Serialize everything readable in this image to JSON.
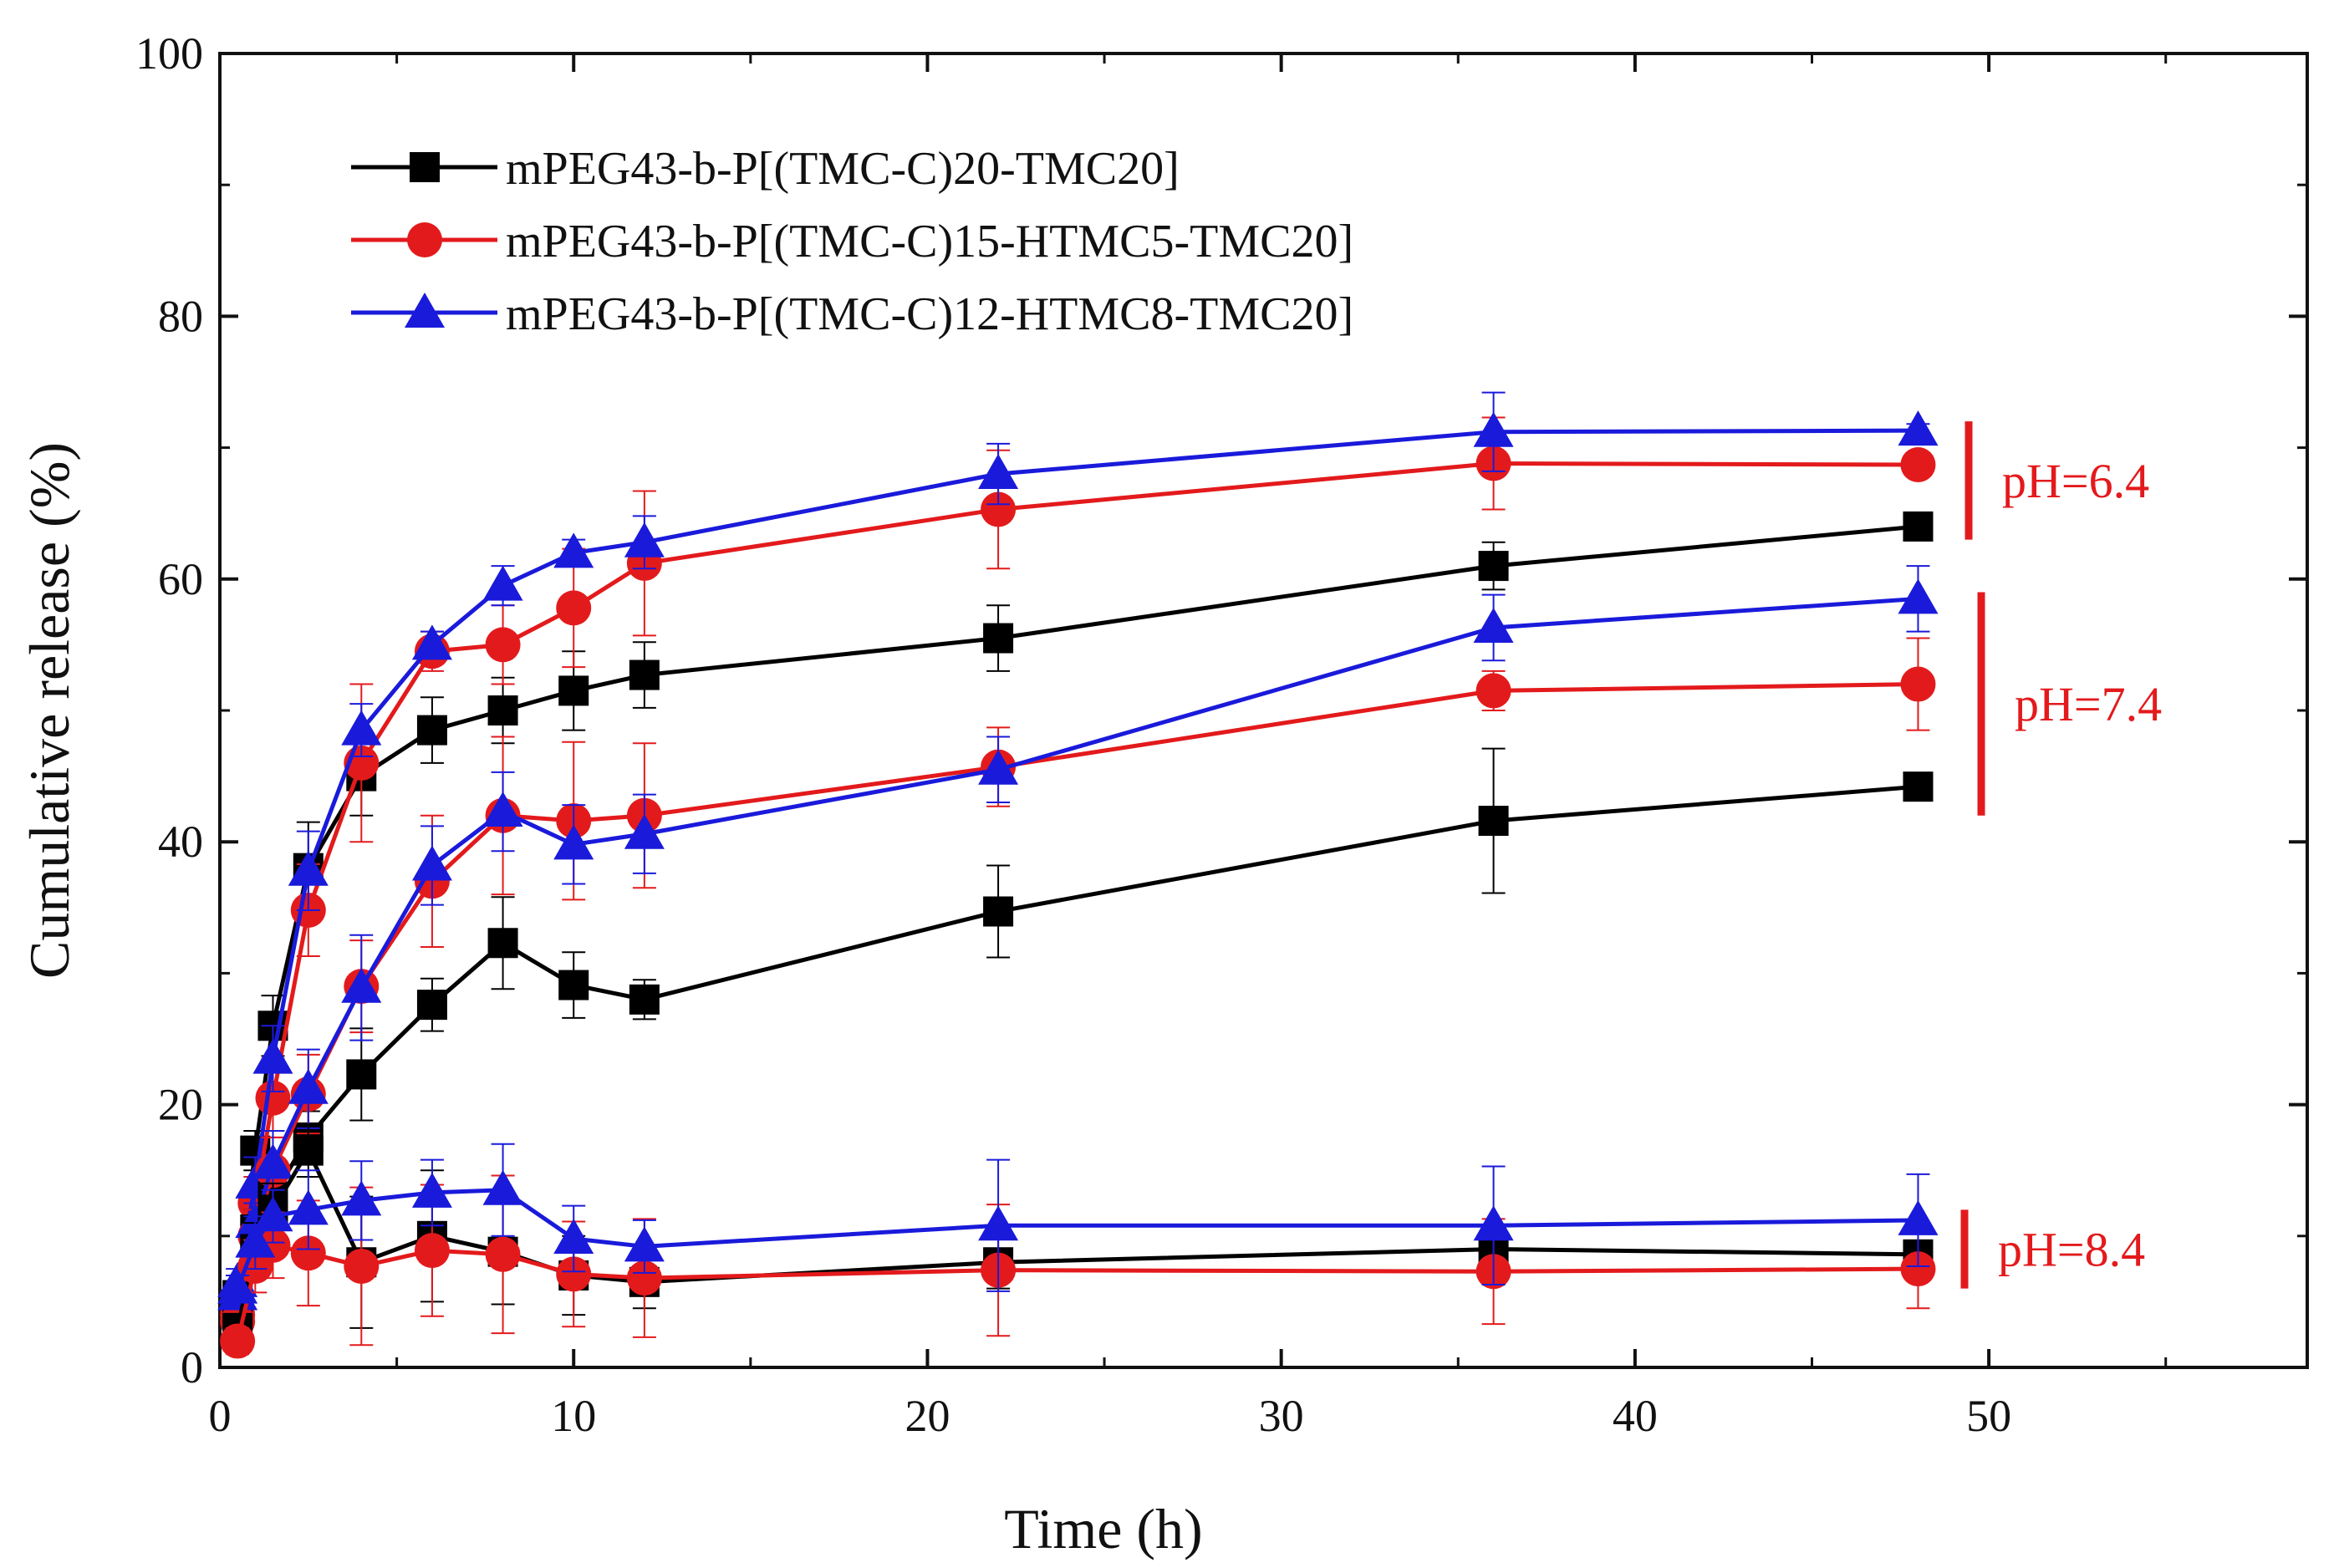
{
  "chart_data": {
    "type": "line",
    "title": "",
    "xlabel": "Time (h)",
    "ylabel": "Cumulative release (%)",
    "xlim": [
      0,
      59
    ],
    "ylim": [
      0,
      100
    ],
    "xticks": [
      0,
      10,
      20,
      30,
      40,
      50
    ],
    "yticks": [
      0,
      20,
      40,
      60,
      80,
      100
    ],
    "x_tick_labels": [
      "0",
      "10",
      "20",
      "30",
      "40",
      "50"
    ],
    "y_tick_labels": [
      "0",
      "20",
      "40",
      "60",
      "80",
      "100"
    ],
    "x": [
      0.5,
      1,
      1.5,
      2.5,
      4,
      6,
      8,
      10,
      12,
      22,
      36,
      48
    ],
    "legend": {
      "placement": "top-left",
      "entries": [
        {
          "text": "mPEG43-b-P[(TMC-C)20-TMC20]",
          "color": "#000000",
          "marker": "square"
        },
        {
          "text": "mPEG43-b-P[(TMC-C)15-HTMC5-TMC20]",
          "color": "#e31a1c",
          "marker": "circle"
        },
        {
          "text": "mPEG43-b-P[(TMC-C)12-HTMC8-TMC20]",
          "color": "#1a1adb",
          "marker": "triangle"
        }
      ]
    },
    "annotations": [
      {
        "text": "pH=6.4",
        "color": "#e31a1c",
        "y_range": [
          63,
          72
        ]
      },
      {
        "text": "pH=7.4",
        "color": "#e31a1c",
        "y_range": [
          42,
          59
        ]
      },
      {
        "text": "pH=8.4",
        "color": "#e31a1c",
        "y_range": [
          6,
          12
        ]
      }
    ],
    "series": [
      {
        "name": "mPEG43-b-P[(TMC-C)20-TMC20]",
        "condition": "pH=6.4",
        "color": "#000000",
        "marker": "square",
        "values": [
          5.5,
          16.5,
          26,
          38,
          45,
          48.5,
          50,
          51.5,
          52.7,
          55.5,
          61,
          64
        ],
        "errors": [
          1.5,
          1.5,
          2.3,
          3.5,
          3,
          2.5,
          2.5,
          3,
          2.5,
          2.5,
          1.8,
          1
        ]
      },
      {
        "name": "mPEG43-b-P[(TMC-C)15-HTMC5-TMC20]",
        "condition": "pH=6.4",
        "color": "#e31a1c",
        "marker": "circle",
        "values": [
          4,
          12.5,
          20.5,
          34.8,
          46,
          54.5,
          55,
          57.8,
          61.2,
          65.3,
          68.8,
          68.7
        ],
        "errors": [
          1,
          2,
          3,
          3.5,
          6,
          1.5,
          3,
          4.5,
          5.5,
          4.5,
          3.5,
          0.5
        ]
      },
      {
        "name": "mPEG43-b-P[(TMC-C)12-HTMC8-TMC20]",
        "condition": "pH=6.4",
        "color": "#1a1adb",
        "marker": "triangle",
        "values": [
          6.5,
          14,
          23.5,
          37.8,
          48.5,
          55,
          59.5,
          62,
          62.8,
          68,
          71.2,
          71.3
        ],
        "errors": [
          1,
          2,
          2.5,
          3,
          2,
          1,
          1.5,
          1,
          2,
          2.3,
          3,
          0.5
        ]
      },
      {
        "name": "mPEG43-b-P[(TMC-C)20-TMC20]",
        "condition": "pH=7.4",
        "color": "#000000",
        "marker": "square",
        "values": [
          4,
          10.5,
          13,
          17.5,
          22.3,
          27.6,
          32.3,
          29.1,
          28,
          34.7,
          41.6,
          44.2
        ],
        "errors": [
          1,
          1.5,
          2,
          2,
          3.5,
          2,
          3.5,
          2.5,
          1.5,
          3.5,
          5.5,
          1
        ]
      },
      {
        "name": "mPEG43-b-P[(TMC-C)15-HTMC5-TMC20]",
        "condition": "pH=7.4",
        "color": "#e31a1c",
        "marker": "circle",
        "values": [
          3.5,
          10,
          15,
          20.8,
          29,
          37,
          42,
          41.6,
          42,
          45.7,
          51.5,
          52
        ],
        "errors": [
          1,
          2,
          2.5,
          3,
          3.5,
          5,
          6,
          6,
          5.5,
          3,
          1.5,
          3.5
        ]
      },
      {
        "name": "mPEG43-b-P[(TMC-C)12-HTMC8-TMC20]",
        "condition": "pH=7.4",
        "color": "#1a1adb",
        "marker": "triangle",
        "values": [
          5.5,
          11,
          15.5,
          21.2,
          28.9,
          38.2,
          42.3,
          39.8,
          40.6,
          45.5,
          56.3,
          58.5
        ],
        "errors": [
          1,
          1.5,
          2.5,
          3,
          4,
          3,
          3,
          3,
          3,
          2.5,
          2.5,
          2.5
        ]
      },
      {
        "name": "mPEG43-b-P[(TMC-C)20-TMC20]",
        "condition": "pH=8.4",
        "color": "#000000",
        "marker": "square",
        "values": [
          3,
          9,
          12,
          16.5,
          8,
          10,
          8.8,
          7,
          6.5,
          8,
          9,
          8.6
        ],
        "errors": [
          1,
          2,
          2,
          2,
          5,
          5,
          4,
          3,
          2,
          2,
          1.5,
          1
        ]
      },
      {
        "name": "mPEG43-b-P[(TMC-C)15-HTMC5-TMC20]",
        "condition": "pH=8.4",
        "color": "#e31a1c",
        "marker": "circle",
        "values": [
          2,
          7.7,
          9.3,
          8.7,
          7.7,
          8.9,
          8.6,
          7.1,
          6.8,
          7.4,
          7.3,
          7.5
        ],
        "errors": [
          1,
          2,
          2.5,
          4,
          6,
          5,
          6,
          4,
          4.5,
          5,
          4,
          3
        ]
      },
      {
        "name": "mPEG43-b-P[(TMC-C)12-HTMC8-TMC20]",
        "condition": "pH=8.4",
        "color": "#1a1adb",
        "marker": "triangle",
        "values": [
          6,
          9.5,
          11.5,
          12,
          12.7,
          13.3,
          13.5,
          9.8,
          9.2,
          10.8,
          10.8,
          11.2
        ],
        "errors": [
          1,
          2,
          2,
          3,
          3,
          2.5,
          3.5,
          2.5,
          2,
          5,
          4.5,
          3.5
        ]
      }
    ]
  }
}
